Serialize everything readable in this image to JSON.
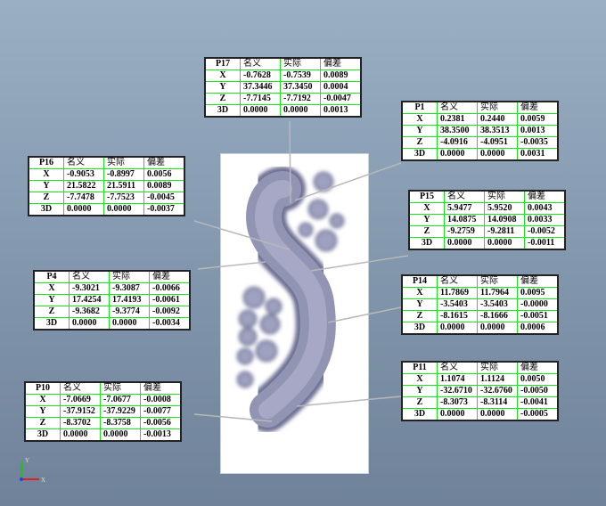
{
  "columns": [
    "名义",
    "实际",
    "偏差"
  ],
  "row_labels": [
    "X",
    "Y",
    "Z",
    "3D"
  ],
  "points": [
    {
      "id": "P17",
      "rows": [
        [
          "-0.7628",
          "-0.7539",
          "0.0089"
        ],
        [
          "37.3446",
          "37.3450",
          "0.0004"
        ],
        [
          "-7.7145",
          "-7.7192",
          "-0.0047"
        ],
        [
          "0.0000",
          "0.0000",
          "0.0013"
        ]
      ]
    },
    {
      "id": "P1",
      "rows": [
        [
          "0.2381",
          "0.2440",
          "0.0059"
        ],
        [
          "38.3500",
          "38.3513",
          "0.0013"
        ],
        [
          "-4.0916",
          "-4.0951",
          "-0.0035"
        ],
        [
          "0.0000",
          "0.0000",
          "0.0031"
        ]
      ]
    },
    {
      "id": "P16",
      "rows": [
        [
          "-0.9053",
          "-0.8997",
          "0.0056"
        ],
        [
          "21.5822",
          "21.5911",
          "0.0089"
        ],
        [
          "-7.7478",
          "-7.7523",
          "-0.0045"
        ],
        [
          "0.0000",
          "0.0000",
          "-0.0037"
        ]
      ]
    },
    {
      "id": "P15",
      "rows": [
        [
          "5.9477",
          "5.9520",
          "0.0043"
        ],
        [
          "14.0875",
          "14.0908",
          "0.0033"
        ],
        [
          "-9.2759",
          "-9.2811",
          "-0.0052"
        ],
        [
          "0.0000",
          "0.0000",
          "-0.0011"
        ]
      ]
    },
    {
      "id": "P4",
      "rows": [
        [
          "-9.3021",
          "-9.3087",
          "-0.0066"
        ],
        [
          "17.4254",
          "17.4193",
          "-0.0061"
        ],
        [
          "-9.3682",
          "-9.3774",
          "-0.0092"
        ],
        [
          "0.0000",
          "0.0000",
          "-0.0034"
        ]
      ]
    },
    {
      "id": "P14",
      "rows": [
        [
          "11.7869",
          "11.7964",
          "0.0095"
        ],
        [
          "-3.5403",
          "-3.5403",
          "-0.0000"
        ],
        [
          "-8.1615",
          "-8.1666",
          "-0.0051"
        ],
        [
          "0.0000",
          "0.0000",
          "0.0006"
        ]
      ]
    },
    {
      "id": "P10",
      "rows": [
        [
          "-7.0669",
          "-7.0677",
          "-0.0008"
        ],
        [
          "-37.9152",
          "-37.9229",
          "-0.0077"
        ],
        [
          "-8.3702",
          "-8.3758",
          "-0.0056"
        ],
        [
          "0.0000",
          "0.0000",
          "-0.0013"
        ]
      ]
    },
    {
      "id": "P11",
      "rows": [
        [
          "1.1074",
          "1.1124",
          "0.0050"
        ],
        [
          "-32.6710",
          "-32.6760",
          "-0.0050"
        ],
        [
          "-8.3073",
          "-8.3114",
          "-0.0041"
        ],
        [
          "0.0000",
          "0.0000",
          "-0.0005"
        ]
      ]
    }
  ],
  "triad": {
    "x_label": "X",
    "y_label": "Y",
    "x_color": "#e02020",
    "y_color": "#20c020",
    "z_color": "#2040e0"
  },
  "colors": {
    "grid": "#19e619",
    "part": "#8a8cab"
  }
}
